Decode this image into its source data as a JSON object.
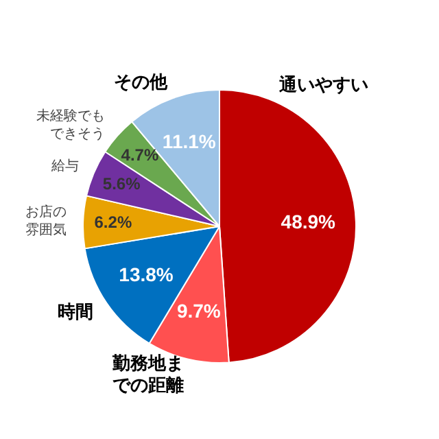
{
  "chart_data": {
    "type": "pie",
    "categories": [
      "通いやすい",
      "勤務地までの距離",
      "時間",
      "お店の雰囲気",
      "給与",
      "未経験でもできそう",
      "その他"
    ],
    "values": [
      48.9,
      9.7,
      13.8,
      6.2,
      5.6,
      4.7,
      11.1
    ],
    "colors": [
      "#c00000",
      "#ff5050",
      "#0070c0",
      "#e8a202",
      "#7030a0",
      "#6aa84f",
      "#9dc3e6"
    ],
    "value_labels": [
      "48.9%",
      "9.7%",
      "13.8%",
      "6.2%",
      "5.6%",
      "4.7%",
      "11.1%"
    ],
    "legend": false
  }
}
